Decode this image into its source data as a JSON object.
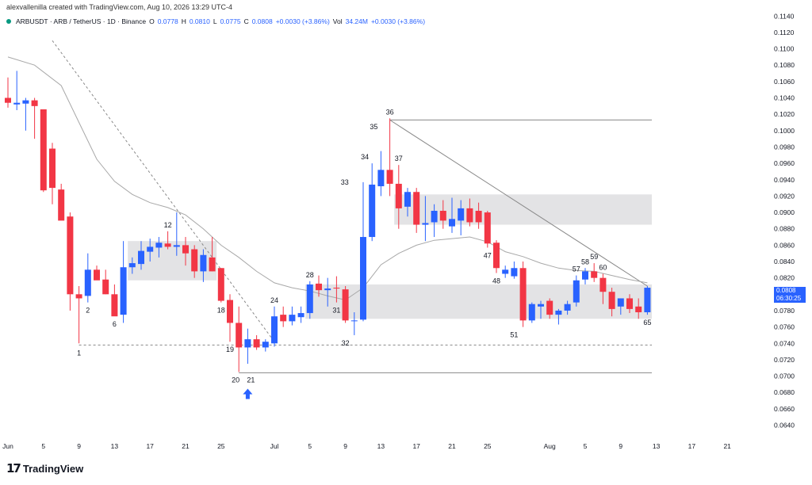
{
  "header": {
    "attribution": "alexvallenilla created with TradingView.com, Aug 10, 2026 13:29 UTC-4",
    "symbol_line": "ARBUSDT · ARB / TetherUS · 1D · Binance",
    "o_label": "O",
    "o_val": "0.0778",
    "h_label": "H",
    "h_val": "0.0810",
    "l_label": "L",
    "l_val": "0.0775",
    "c_label": "C",
    "c_val": "0.0808",
    "change": "+0.0030 (+3.86%)",
    "vol_label": "Vol",
    "vol_val": "34.24M",
    "vol_change": "+0.0030 (+3.86%)"
  },
  "price_tag": {
    "price": "0.0808",
    "countdown": "06:30:25"
  },
  "footer": {
    "brand": "TradingView"
  },
  "colors": {
    "up": "#2962ff",
    "down": "#f23645",
    "zone": "#d9d9dc",
    "ma": "#a8a8a8",
    "grid_text": "#131722"
  },
  "chart_data": {
    "type": "candlestick",
    "y_axis": {
      "ticks": [
        "0.0640",
        "0.0660",
        "0.0680",
        "0.0700",
        "0.0720",
        "0.0740",
        "0.0760",
        "0.0780",
        "0.0800",
        "0.0820",
        "0.0840",
        "0.0860",
        "0.0880",
        "0.0900",
        "0.0920",
        "0.0940",
        "0.0960",
        "0.0980",
        "0.1000",
        "0.1020",
        "0.1040",
        "0.1060",
        "0.1080",
        "0.1100",
        "0.1120",
        "0.1140"
      ],
      "range": [
        0.0625,
        0.1148
      ]
    },
    "x_axis": {
      "ticks": [
        {
          "day": 0,
          "label": "Jun"
        },
        {
          "day": 4,
          "label": "5"
        },
        {
          "day": 8,
          "label": "9"
        },
        {
          "day": 12,
          "label": "13"
        },
        {
          "day": 16,
          "label": "17"
        },
        {
          "day": 20,
          "label": "21"
        },
        {
          "day": 24,
          "label": "25"
        },
        {
          "day": 30,
          "label": "Jul"
        },
        {
          "day": 34,
          "label": "5"
        },
        {
          "day": 38,
          "label": "9"
        },
        {
          "day": 42,
          "label": "13"
        },
        {
          "day": 46,
          "label": "17"
        },
        {
          "day": 50,
          "label": "21"
        },
        {
          "day": 54,
          "label": "25"
        },
        {
          "day": 61,
          "label": "Aug"
        },
        {
          "day": 65,
          "label": "5"
        },
        {
          "day": 69,
          "label": "9"
        },
        {
          "day": 73,
          "label": "13"
        },
        {
          "day": 77,
          "label": "17"
        },
        {
          "day": 81,
          "label": "21"
        }
      ]
    },
    "candles": [
      {
        "o": 0.104,
        "h": 0.1065,
        "l": 0.1028,
        "c": 0.1034
      },
      {
        "o": 0.1032,
        "h": 0.1073,
        "l": 0.1025,
        "c": 0.1034
      },
      {
        "o": 0.1033,
        "h": 0.104,
        "l": 0.1,
        "c": 0.1037
      },
      {
        "o": 0.1037,
        "h": 0.104,
        "l": 0.099,
        "c": 0.103
      },
      {
        "o": 0.1026,
        "h": 0.1026,
        "l": 0.0925,
        "c": 0.0927
      },
      {
        "o": 0.0978,
        "h": 0.0985,
        "l": 0.091,
        "c": 0.093
      },
      {
        "o": 0.0928,
        "h": 0.0935,
        "l": 0.0895,
        "c": 0.089
      },
      {
        "o": 0.0895,
        "h": 0.09,
        "l": 0.078,
        "c": 0.08
      },
      {
        "o": 0.08,
        "h": 0.081,
        "l": 0.074,
        "c": 0.0795
      },
      {
        "o": 0.0798,
        "h": 0.085,
        "l": 0.079,
        "c": 0.083
      },
      {
        "o": 0.083,
        "h": 0.0835,
        "l": 0.0818,
        "c": 0.0817
      },
      {
        "o": 0.0818,
        "h": 0.083,
        "l": 0.08,
        "c": 0.08
      },
      {
        "o": 0.08,
        "h": 0.0812,
        "l": 0.0775,
        "c": 0.0773
      },
      {
        "o": 0.0775,
        "h": 0.0865,
        "l": 0.0765,
        "c": 0.0833
      },
      {
        "o": 0.0833,
        "h": 0.0845,
        "l": 0.0825,
        "c": 0.0838
      },
      {
        "o": 0.0837,
        "h": 0.0865,
        "l": 0.083,
        "c": 0.0853
      },
      {
        "o": 0.0852,
        "h": 0.0868,
        "l": 0.084,
        "c": 0.0858
      },
      {
        "o": 0.0857,
        "h": 0.087,
        "l": 0.0845,
        "c": 0.0863
      },
      {
        "o": 0.0862,
        "h": 0.0877,
        "l": 0.0855,
        "c": 0.0858
      },
      {
        "o": 0.0858,
        "h": 0.09,
        "l": 0.0847,
        "c": 0.086
      },
      {
        "o": 0.086,
        "h": 0.087,
        "l": 0.0835,
        "c": 0.085
      },
      {
        "o": 0.0855,
        "h": 0.086,
        "l": 0.082,
        "c": 0.0828
      },
      {
        "o": 0.0828,
        "h": 0.0855,
        "l": 0.0815,
        "c": 0.0848
      },
      {
        "o": 0.0845,
        "h": 0.087,
        "l": 0.0828,
        "c": 0.0828
      },
      {
        "o": 0.0832,
        "h": 0.0832,
        "l": 0.079,
        "c": 0.0792
      },
      {
        "o": 0.0793,
        "h": 0.08,
        "l": 0.0742,
        "c": 0.0765
      },
      {
        "o": 0.0765,
        "h": 0.0785,
        "l": 0.0705,
        "c": 0.0735
      },
      {
        "o": 0.0735,
        "h": 0.0758,
        "l": 0.0715,
        "c": 0.0745
      },
      {
        "o": 0.0745,
        "h": 0.075,
        "l": 0.0732,
        "c": 0.0735
      },
      {
        "o": 0.0735,
        "h": 0.0745,
        "l": 0.073,
        "c": 0.0742
      },
      {
        "o": 0.074,
        "h": 0.0785,
        "l": 0.0736,
        "c": 0.0773
      },
      {
        "o": 0.0775,
        "h": 0.0785,
        "l": 0.076,
        "c": 0.0767
      },
      {
        "o": 0.0767,
        "h": 0.0785,
        "l": 0.0762,
        "c": 0.0775
      },
      {
        "o": 0.0772,
        "h": 0.0785,
        "l": 0.0765,
        "c": 0.0777
      },
      {
        "o": 0.0777,
        "h": 0.0816,
        "l": 0.077,
        "c": 0.0812
      },
      {
        "o": 0.0813,
        "h": 0.0823,
        "l": 0.0797,
        "c": 0.0805
      },
      {
        "o": 0.0805,
        "h": 0.082,
        "l": 0.0785,
        "c": 0.0807
      },
      {
        "o": 0.0808,
        "h": 0.0822,
        "l": 0.079,
        "c": 0.0807
      },
      {
        "o": 0.0806,
        "h": 0.081,
        "l": 0.0765,
        "c": 0.0768
      },
      {
        "o": 0.0768,
        "h": 0.0778,
        "l": 0.075,
        "c": 0.0768
      },
      {
        "o": 0.0769,
        "h": 0.0937,
        "l": 0.0767,
        "c": 0.087
      },
      {
        "o": 0.087,
        "h": 0.096,
        "l": 0.0865,
        "c": 0.0934
      },
      {
        "o": 0.0932,
        "h": 0.0975,
        "l": 0.092,
        "c": 0.0952
      },
      {
        "o": 0.0952,
        "h": 0.1015,
        "l": 0.092,
        "c": 0.0935
      },
      {
        "o": 0.0935,
        "h": 0.0958,
        "l": 0.088,
        "c": 0.0905
      },
      {
        "o": 0.0907,
        "h": 0.093,
        "l": 0.0895,
        "c": 0.0925
      },
      {
        "o": 0.0925,
        "h": 0.093,
        "l": 0.0875,
        "c": 0.0885
      },
      {
        "o": 0.0885,
        "h": 0.092,
        "l": 0.0865,
        "c": 0.0887
      },
      {
        "o": 0.0888,
        "h": 0.091,
        "l": 0.087,
        "c": 0.0902
      },
      {
        "o": 0.0902,
        "h": 0.0915,
        "l": 0.088,
        "c": 0.089
      },
      {
        "o": 0.0883,
        "h": 0.0918,
        "l": 0.0875,
        "c": 0.0892
      },
      {
        "o": 0.089,
        "h": 0.0915,
        "l": 0.0872,
        "c": 0.0905
      },
      {
        "o": 0.0905,
        "h": 0.0917,
        "l": 0.0883,
        "c": 0.0888
      },
      {
        "o": 0.0902,
        "h": 0.0912,
        "l": 0.088,
        "c": 0.0888
      },
      {
        "o": 0.09,
        "h": 0.0902,
        "l": 0.0857,
        "c": 0.0862
      },
      {
        "o": 0.0863,
        "h": 0.0866,
        "l": 0.0826,
        "c": 0.0832
      },
      {
        "o": 0.0825,
        "h": 0.0835,
        "l": 0.082,
        "c": 0.083
      },
      {
        "o": 0.0822,
        "h": 0.084,
        "l": 0.0819,
        "c": 0.0832
      },
      {
        "o": 0.0832,
        "h": 0.084,
        "l": 0.076,
        "c": 0.0768
      },
      {
        "o": 0.0768,
        "h": 0.079,
        "l": 0.0765,
        "c": 0.0788
      },
      {
        "o": 0.0785,
        "h": 0.0792,
        "l": 0.077,
        "c": 0.0788
      },
      {
        "o": 0.0792,
        "h": 0.0795,
        "l": 0.077,
        "c": 0.0775
      },
      {
        "o": 0.0775,
        "h": 0.0782,
        "l": 0.0763,
        "c": 0.078
      },
      {
        "o": 0.078,
        "h": 0.0792,
        "l": 0.0775,
        "c": 0.0788
      },
      {
        "o": 0.079,
        "h": 0.0823,
        "l": 0.0785,
        "c": 0.0817
      },
      {
        "o": 0.0818,
        "h": 0.0832,
        "l": 0.0812,
        "c": 0.0828
      },
      {
        "o": 0.0828,
        "h": 0.0838,
        "l": 0.0815,
        "c": 0.082
      },
      {
        "o": 0.082,
        "h": 0.0825,
        "l": 0.0788,
        "c": 0.0803
      },
      {
        "o": 0.0803,
        "h": 0.0808,
        "l": 0.0773,
        "c": 0.0782
      },
      {
        "o": 0.0785,
        "h": 0.0795,
        "l": 0.0775,
        "c": 0.0795
      },
      {
        "o": 0.0795,
        "h": 0.08,
        "l": 0.0777,
        "c": 0.0782
      },
      {
        "o": 0.0785,
        "h": 0.0795,
        "l": 0.077,
        "c": 0.0778
      },
      {
        "o": 0.0778,
        "h": 0.081,
        "l": 0.0775,
        "c": 0.0808
      }
    ],
    "moving_average": [
      [
        0,
        0.109
      ],
      [
        3,
        0.108
      ],
      [
        6,
        0.1055
      ],
      [
        8,
        0.101
      ],
      [
        10,
        0.0965
      ],
      [
        12,
        0.0938
      ],
      [
        14,
        0.0922
      ],
      [
        16,
        0.0912
      ],
      [
        18,
        0.0906
      ],
      [
        20,
        0.0897
      ],
      [
        22,
        0.088
      ],
      [
        24,
        0.086
      ],
      [
        26,
        0.0845
      ],
      [
        28,
        0.0828
      ],
      [
        30,
        0.0814
      ],
      [
        32,
        0.0808
      ],
      [
        34,
        0.0804
      ],
      [
        36,
        0.0798
      ],
      [
        38,
        0.0793
      ],
      [
        40,
        0.0808
      ],
      [
        42,
        0.0836
      ],
      [
        44,
        0.085
      ],
      [
        46,
        0.086
      ],
      [
        48,
        0.0866
      ],
      [
        50,
        0.0868
      ],
      [
        52,
        0.087
      ],
      [
        54,
        0.0864
      ],
      [
        56,
        0.0852
      ],
      [
        58,
        0.0846
      ],
      [
        60,
        0.0838
      ],
      [
        62,
        0.0832
      ],
      [
        64,
        0.0829
      ],
      [
        66,
        0.0828
      ],
      [
        68,
        0.0823
      ],
      [
        70,
        0.0818
      ],
      [
        72,
        0.0814
      ]
    ],
    "zones": [
      {
        "d1": 13.5,
        "d2": 23.5,
        "top": 0.0865,
        "bottom": 0.0817
      },
      {
        "d1": 33.5,
        "d2": 72.5,
        "top": 0.0812,
        "bottom": 0.077
      },
      {
        "d1": 43.5,
        "d2": 72.5,
        "top": 0.0922,
        "bottom": 0.0885
      }
    ],
    "lines": [
      {
        "d1": 43,
        "v1": 0.1013,
        "d2": 72.5,
        "v2": 0.1013,
        "style": "solid"
      },
      {
        "d1": 26,
        "v1": 0.0704,
        "d2": 72.5,
        "v2": 0.0704,
        "style": "solid"
      },
      {
        "d1": 8,
        "v1": 0.0738,
        "d2": 72.5,
        "v2": 0.0738,
        "style": "dashed"
      },
      {
        "d1": 43,
        "v1": 0.1013,
        "d2": 72,
        "v2": 0.081,
        "style": "solid"
      },
      {
        "d1": 5,
        "v1": 0.111,
        "d2": 30,
        "v2": 0.0742,
        "style": "dashed"
      }
    ],
    "labels": [
      {
        "day": 8,
        "v": 0.0738,
        "t": "1",
        "pos": "below"
      },
      {
        "day": 9,
        "v": 0.079,
        "t": "2",
        "pos": "below"
      },
      {
        "day": 12,
        "v": 0.0773,
        "t": "6",
        "pos": "below"
      },
      {
        "day": 18,
        "v": 0.0877,
        "t": "12",
        "pos": "above"
      },
      {
        "day": 24,
        "v": 0.079,
        "t": "18",
        "pos": "below"
      },
      {
        "day": 25,
        "v": 0.0742,
        "t": "19",
        "pos": "below"
      },
      {
        "day": 26,
        "v": 0.0705,
        "t": "20",
        "pos": "below-left"
      },
      {
        "day": 27,
        "v": 0.0705,
        "t": "21",
        "pos": "below-right"
      },
      {
        "day": 30,
        "v": 0.0785,
        "t": "24",
        "pos": "above"
      },
      {
        "day": 34,
        "v": 0.0816,
        "t": "28",
        "pos": "above"
      },
      {
        "day": 37,
        "v": 0.079,
        "t": "31",
        "pos": "below"
      },
      {
        "day": 38,
        "v": 0.075,
        "t": "32",
        "pos": "below"
      },
      {
        "day": 39,
        "v": 0.0937,
        "t": "33",
        "pos": "left"
      },
      {
        "day": 41,
        "v": 0.096,
        "t": "34",
        "pos": "above-left"
      },
      {
        "day": 42,
        "v": 0.0997,
        "t": "35",
        "pos": "above-left"
      },
      {
        "day": 43,
        "v": 0.1015,
        "t": "36",
        "pos": "above"
      },
      {
        "day": 44,
        "v": 0.0958,
        "t": "37",
        "pos": "above"
      },
      {
        "day": 54,
        "v": 0.0857,
        "t": "47",
        "pos": "below"
      },
      {
        "day": 55,
        "v": 0.0826,
        "t": "48",
        "pos": "below"
      },
      {
        "day": 57,
        "v": 0.076,
        "t": "51",
        "pos": "below"
      },
      {
        "day": 64,
        "v": 0.0823,
        "t": "57",
        "pos": "above"
      },
      {
        "day": 65,
        "v": 0.0832,
        "t": "58",
        "pos": "above"
      },
      {
        "day": 66,
        "v": 0.0838,
        "t": "59",
        "pos": "above"
      },
      {
        "day": 67,
        "v": 0.0825,
        "t": "60",
        "pos": "above"
      },
      {
        "day": 72,
        "v": 0.0775,
        "t": "65",
        "pos": "below"
      }
    ],
    "arrow": {
      "day": 27,
      "v": 0.07
    }
  }
}
